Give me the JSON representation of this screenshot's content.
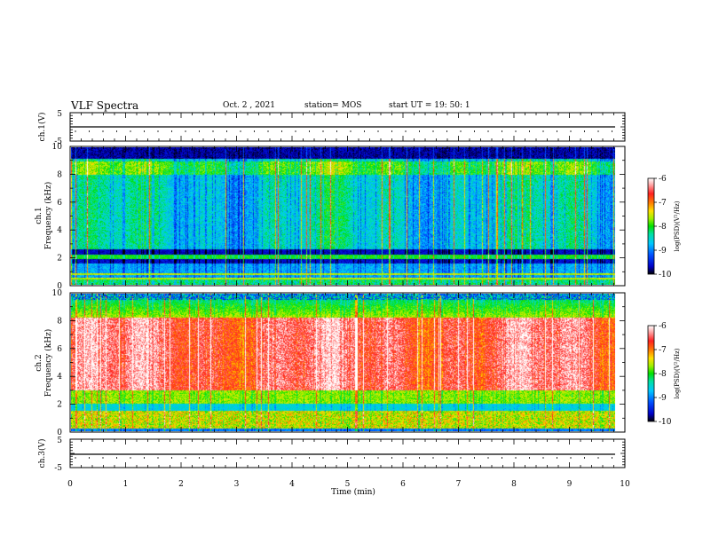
{
  "header": {
    "title": "VLF Spectra",
    "date": "Oct. 2 , 2021",
    "station": "station= MOS",
    "start": "start UT =  19: 50: 1"
  },
  "chart_data": [
    {
      "type": "line",
      "name": "ch1-voltage",
      "ylabel": "ch.1(V)",
      "ylim": [
        -5,
        5
      ],
      "yticks": [
        "5",
        "-5"
      ],
      "x": [
        0,
        10
      ],
      "values": [
        0,
        0
      ]
    },
    {
      "type": "heatmap",
      "name": "ch1-spectrogram",
      "ylabel_channel": "ch.1",
      "ylabel": "Frequency (kHz)",
      "ylim": [
        0,
        10
      ],
      "yticks": [
        "10",
        "8",
        "6",
        "4",
        "2",
        "0"
      ],
      "xlim": [
        0,
        9.85
      ],
      "colorbar": {
        "min": -10,
        "max": -6,
        "ticks": [
          "-6",
          "-7",
          "-8",
          "-9",
          "-10"
        ],
        "label": "log(PSD)(V²/Hz)"
      }
    },
    {
      "type": "heatmap",
      "name": "ch2-spectrogram",
      "ylabel_channel": "ch.2",
      "ylabel": "Frequency (kHz)",
      "ylim": [
        0,
        10
      ],
      "yticks": [
        "10",
        "8",
        "6",
        "4",
        "2",
        "0"
      ],
      "xlim": [
        0,
        9.85
      ],
      "colorbar": {
        "min": -10,
        "max": -6,
        "ticks": [
          "-6",
          "-7",
          "-8",
          "-9",
          "-10"
        ],
        "label": "log(PSD)(V²/Hz)"
      }
    },
    {
      "type": "line",
      "name": "ch3-voltage",
      "ylabel": "ch.3(V)",
      "ylim": [
        -5,
        5
      ],
      "yticks": [
        "5",
        "-5"
      ],
      "x": [
        0,
        10
      ],
      "values": [
        0,
        0
      ]
    }
  ],
  "xaxis": {
    "label": "Time (min)",
    "ticks": [
      "0",
      "1",
      "2",
      "3",
      "4",
      "5",
      "6",
      "7",
      "8",
      "9",
      "10"
    ],
    "range": [
      0,
      10
    ]
  },
  "colors": {
    "map": [
      "#000000",
      "#0000c8",
      "#0050ff",
      "#00c8ff",
      "#00e0a0",
      "#00e000",
      "#a0f000",
      "#ffe000",
      "#ff8000",
      "#ff2020",
      "#ffb0b0",
      "#ffffff"
    ]
  }
}
